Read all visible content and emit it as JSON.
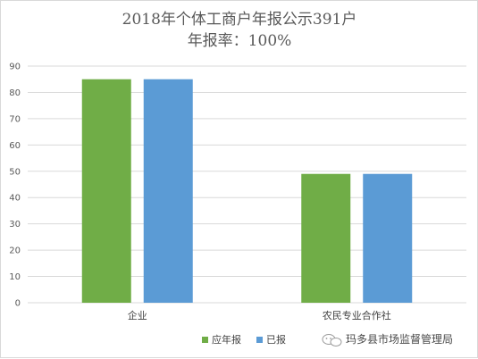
{
  "chart_data": {
    "type": "bar",
    "title": "2018年个体工商户年报公示391户",
    "subtitle": "年报率：100%",
    "categories": [
      "企业",
      "农民专业合作社"
    ],
    "series": [
      {
        "name": "应年报",
        "color": "#70ad47",
        "values": [
          85,
          49
        ]
      },
      {
        "name": "已报",
        "color": "#5b9bd5",
        "values": [
          85,
          49
        ]
      }
    ],
    "ylim": [
      0,
      90
    ],
    "yticks": [
      0,
      10,
      20,
      30,
      40,
      50,
      60,
      70,
      80,
      90
    ],
    "grid": true,
    "legend_position": "bottom"
  },
  "watermark": {
    "text": "玛多县市场监督管理局",
    "icon": "wechat-icon"
  }
}
